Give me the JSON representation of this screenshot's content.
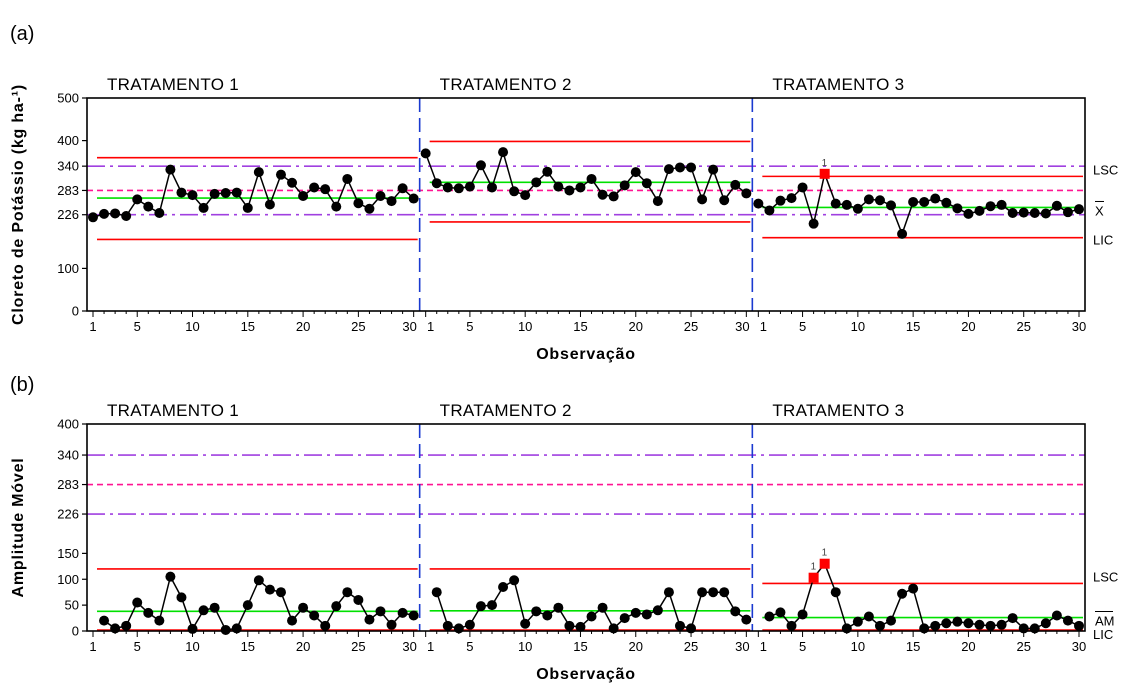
{
  "chart_data": [
    {
      "panel": "(a)",
      "type": "line",
      "ylabel": "Cloreto de Potássio (kg ha-¹)",
      "xlabel": "Observação",
      "ylim": [
        0,
        500
      ],
      "y_ticks": [
        0,
        100,
        226,
        283,
        340,
        400,
        500
      ],
      "x_ticks": [
        "1",
        "5",
        "10",
        "15",
        "20",
        "25",
        "30"
      ],
      "x_ticks_first_label": "1",
      "right_labels": {
        "upper": "LSC",
        "center": "X",
        "lower": "LIC"
      },
      "global_lines": {
        "dashdot_upper": 340,
        "dash_center": 283,
        "dashdot_lower": 226
      },
      "treatments": [
        {
          "name": "TRATAMENTO 1",
          "values": [
            220,
            228,
            229,
            223,
            262,
            245,
            230,
            332,
            278,
            272,
            242,
            275,
            277,
            278,
            242,
            326,
            250,
            320,
            301,
            270,
            290,
            286,
            245,
            310,
            253,
            240,
            270,
            258,
            288,
            264
          ],
          "center": 265,
          "lsc": 360,
          "lic": 168,
          "flags": []
        },
        {
          "name": "TRATAMENTO 2",
          "values": [
            370,
            300,
            290,
            288,
            292,
            342,
            290,
            373,
            281,
            272,
            302,
            327,
            292,
            283,
            290,
            310,
            273,
            269,
            295,
            326,
            300,
            258,
            333,
            337,
            337,
            262,
            332,
            260,
            296,
            276
          ],
          "center": 302,
          "lsc": 398,
          "lic": 209,
          "flags": []
        },
        {
          "name": "TRATAMENTO 3",
          "values": [
            252,
            236,
            259,
            265,
            290,
            205,
            322,
            252,
            249,
            240,
            262,
            260,
            248,
            181,
            256,
            256,
            264,
            254,
            241,
            228,
            235,
            246,
            249,
            230,
            231,
            230,
            229,
            247,
            232,
            239
          ],
          "center": 243,
          "lsc": 316,
          "lic": 172,
          "flags": [
            {
              "obs": 7,
              "label": "1"
            }
          ]
        }
      ]
    },
    {
      "panel": "(b)",
      "type": "line",
      "ylabel": "Amplitude Móvel",
      "xlabel": "Observação",
      "ylim": [
        0,
        400
      ],
      "y_ticks": [
        0,
        50,
        100,
        150,
        226,
        283,
        340,
        400
      ],
      "x_ticks": [
        "1",
        "5",
        "10",
        "15",
        "20",
        "25",
        "30"
      ],
      "x_ticks_first_label": "1",
      "right_labels": {
        "upper": "LSC",
        "center": "AM",
        "lower": "LIC"
      },
      "global_lines": {
        "dashdot_upper": 340,
        "dash_center": 283,
        "dashdot_lower": 226
      },
      "treatments": [
        {
          "name": "TRATAMENTO 1",
          "values": [
            20,
            5,
            10,
            55,
            35,
            20,
            105,
            65,
            4,
            40,
            45,
            2,
            5,
            50,
            98,
            80,
            75,
            20,
            45,
            30,
            10,
            48,
            75,
            60,
            22,
            38,
            12,
            35,
            30
          ],
          "center": 38,
          "lsc": 120,
          "lic": 0,
          "flags": []
        },
        {
          "name": "TRATAMENTO 2",
          "values": [
            75,
            10,
            5,
            12,
            48,
            50,
            85,
            98,
            14,
            38,
            30,
            45,
            10,
            8,
            28,
            45,
            5,
            25,
            35,
            32,
            40,
            75,
            10,
            5,
            75,
            75,
            75,
            38,
            22
          ],
          "center": 39,
          "lsc": 120,
          "lic": 0,
          "flags": []
        },
        {
          "name": "TRATAMENTO 3",
          "values": [
            28,
            36,
            10,
            32,
            103,
            130,
            75,
            5,
            18,
            28,
            10,
            20,
            72,
            82,
            5,
            10,
            15,
            18,
            15,
            12,
            10,
            12,
            25,
            5,
            5,
            15,
            30,
            20,
            10
          ],
          "center": 26,
          "lsc": 92,
          "lic": 0,
          "flags": [
            {
              "obs": 6,
              "label": "1"
            },
            {
              "obs": 7,
              "label": "1"
            }
          ]
        }
      ]
    }
  ]
}
